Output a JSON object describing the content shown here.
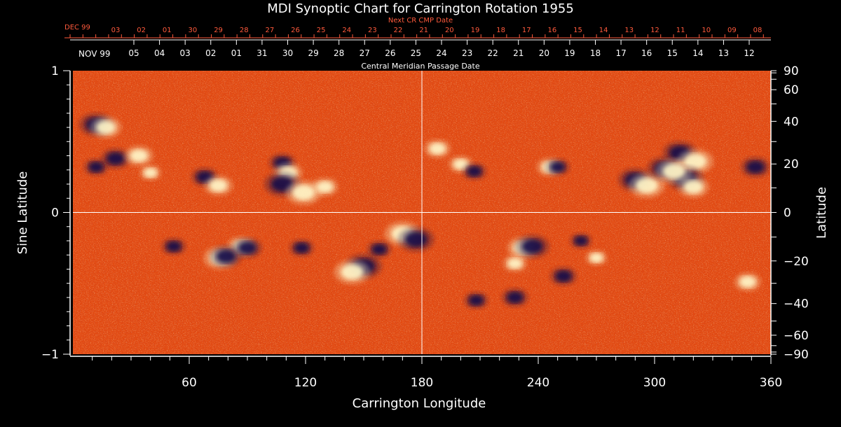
{
  "chart_data": {
    "type": "heatmap",
    "title": "MDI Synoptic Chart for Carrington Rotation 1955",
    "xlabel": "Carrington Longitude",
    "ylabel_left": "Sine Latitude",
    "ylabel_right": "Latitude",
    "xlim": [
      0,
      360
    ],
    "ylim_sine": [
      -1,
      1
    ],
    "x_ticks": [
      60,
      120,
      180,
      240,
      300,
      360
    ],
    "y_ticks_left": [
      {
        "value": 1,
        "label": "1"
      },
      {
        "value": 0,
        "label": "0"
      },
      {
        "value": -1,
        "label": "−1"
      }
    ],
    "y_ticks_right": [
      {
        "deg": 90,
        "label": "90"
      },
      {
        "deg": 60,
        "label": "60"
      },
      {
        "deg": 40,
        "label": "40"
      },
      {
        "deg": 20,
        "label": "20"
      },
      {
        "deg": 0,
        "label": "0"
      },
      {
        "deg": -20,
        "label": "−20"
      },
      {
        "deg": -40,
        "label": "−40"
      },
      {
        "deg": -60,
        "label": "−60"
      },
      {
        "deg": -90,
        "label": "−90"
      }
    ],
    "top_axis_next": {
      "label": "Next CR CMP Date",
      "month_label": "DEC 99",
      "dates": [
        "03",
        "02",
        "01",
        "30",
        "29",
        "28",
        "27",
        "26",
        "25",
        "24",
        "23",
        "22",
        "21",
        "20",
        "19",
        "18",
        "17",
        "16",
        "15",
        "14",
        "13",
        "12",
        "11",
        "10",
        "09",
        "08"
      ]
    },
    "top_axis_cmp": {
      "label": "Central Meridian Passage Date",
      "month_label": "NOV 99",
      "dates": [
        "05",
        "04",
        "03",
        "02",
        "01",
        "31",
        "30",
        "29",
        "28",
        "27",
        "26",
        "25",
        "24",
        "23",
        "22",
        "21",
        "20",
        "19",
        "18",
        "17",
        "16",
        "15",
        "14",
        "13",
        "12"
      ]
    },
    "grid": {
      "vertical_line_longitude": 180,
      "horizontal_line_sine": 0
    },
    "colors": {
      "background_field": "#e24a12",
      "positive_polarity": "#fff6c8",
      "negative_polarity": "#14104a",
      "grid": "#ffffff",
      "top_axis_next": "#ff5a3c",
      "text": "#ffffff"
    },
    "regions": [
      {
        "lon": 12,
        "sinlat": 0.62,
        "polarity": "negative",
        "strength": 0.9
      },
      {
        "lon": 17,
        "sinlat": 0.6,
        "polarity": "positive",
        "strength": 0.8
      },
      {
        "lon": 22,
        "sinlat": 0.38,
        "polarity": "negative",
        "strength": 0.7
      },
      {
        "lon": 12,
        "sinlat": 0.32,
        "polarity": "negative",
        "strength": 0.5
      },
      {
        "lon": 34,
        "sinlat": 0.4,
        "polarity": "positive",
        "strength": 0.7
      },
      {
        "lon": 40,
        "sinlat": 0.28,
        "polarity": "positive",
        "strength": 0.4
      },
      {
        "lon": 68,
        "sinlat": 0.25,
        "polarity": "negative",
        "strength": 0.6
      },
      {
        "lon": 75,
        "sinlat": 0.19,
        "polarity": "positive",
        "strength": 0.7
      },
      {
        "lon": 108,
        "sinlat": 0.35,
        "polarity": "negative",
        "strength": 0.6
      },
      {
        "lon": 111,
        "sinlat": 0.28,
        "polarity": "positive",
        "strength": 0.7
      },
      {
        "lon": 108,
        "sinlat": 0.2,
        "polarity": "negative",
        "strength": 1.0
      },
      {
        "lon": 119,
        "sinlat": 0.14,
        "polarity": "positive",
        "strength": 1.0
      },
      {
        "lon": 130,
        "sinlat": 0.18,
        "polarity": "positive",
        "strength": 0.6
      },
      {
        "lon": 170,
        "sinlat": -0.15,
        "polarity": "positive",
        "strength": 1.0
      },
      {
        "lon": 177,
        "sinlat": -0.19,
        "polarity": "negative",
        "strength": 1.0
      },
      {
        "lon": 150,
        "sinlat": -0.38,
        "polarity": "negative",
        "strength": 1.0
      },
      {
        "lon": 144,
        "sinlat": -0.42,
        "polarity": "positive",
        "strength": 1.0
      },
      {
        "lon": 158,
        "sinlat": -0.26,
        "polarity": "negative",
        "strength": 0.5
      },
      {
        "lon": 87,
        "sinlat": -0.24,
        "polarity": "positive",
        "strength": 0.7
      },
      {
        "lon": 90,
        "sinlat": -0.25,
        "polarity": "negative",
        "strength": 0.7
      },
      {
        "lon": 76,
        "sinlat": -0.32,
        "polarity": "positive",
        "strength": 0.9
      },
      {
        "lon": 79,
        "sinlat": -0.31,
        "polarity": "negative",
        "strength": 0.8
      },
      {
        "lon": 52,
        "sinlat": -0.24,
        "polarity": "negative",
        "strength": 0.5
      },
      {
        "lon": 118,
        "sinlat": -0.25,
        "polarity": "negative",
        "strength": 0.5
      },
      {
        "lon": 188,
        "sinlat": 0.45,
        "polarity": "positive",
        "strength": 0.6
      },
      {
        "lon": 200,
        "sinlat": 0.34,
        "polarity": "positive",
        "strength": 0.5
      },
      {
        "lon": 207,
        "sinlat": 0.29,
        "polarity": "negative",
        "strength": 0.5
      },
      {
        "lon": 246,
        "sinlat": 0.32,
        "polarity": "positive",
        "strength": 0.6
      },
      {
        "lon": 250,
        "sinlat": 0.32,
        "polarity": "negative",
        "strength": 0.5
      },
      {
        "lon": 290,
        "sinlat": 0.23,
        "polarity": "negative",
        "strength": 0.9
      },
      {
        "lon": 296,
        "sinlat": 0.19,
        "polarity": "positive",
        "strength": 1.0
      },
      {
        "lon": 305,
        "sinlat": 0.31,
        "polarity": "negative",
        "strength": 0.9
      },
      {
        "lon": 313,
        "sinlat": 0.42,
        "polarity": "negative",
        "strength": 0.9
      },
      {
        "lon": 321,
        "sinlat": 0.36,
        "polarity": "positive",
        "strength": 1.0
      },
      {
        "lon": 316,
        "sinlat": 0.24,
        "polarity": "negative",
        "strength": 1.0
      },
      {
        "lon": 310,
        "sinlat": 0.29,
        "polarity": "positive",
        "strength": 1.0
      },
      {
        "lon": 320,
        "sinlat": 0.18,
        "polarity": "positive",
        "strength": 0.8
      },
      {
        "lon": 352,
        "sinlat": 0.32,
        "polarity": "negative",
        "strength": 0.7
      },
      {
        "lon": 232,
        "sinlat": -0.25,
        "polarity": "positive",
        "strength": 0.8
      },
      {
        "lon": 237,
        "sinlat": -0.24,
        "polarity": "negative",
        "strength": 0.9
      },
      {
        "lon": 228,
        "sinlat": -0.36,
        "polarity": "positive",
        "strength": 0.5
      },
      {
        "lon": 253,
        "sinlat": -0.45,
        "polarity": "negative",
        "strength": 0.6
      },
      {
        "lon": 228,
        "sinlat": -0.6,
        "polarity": "negative",
        "strength": 0.6
      },
      {
        "lon": 208,
        "sinlat": -0.62,
        "polarity": "negative",
        "strength": 0.5
      },
      {
        "lon": 270,
        "sinlat": -0.32,
        "polarity": "positive",
        "strength": 0.4
      },
      {
        "lon": 348,
        "sinlat": -0.49,
        "polarity": "positive",
        "strength": 0.6
      },
      {
        "lon": 262,
        "sinlat": -0.2,
        "polarity": "negative",
        "strength": 0.4
      }
    ]
  }
}
